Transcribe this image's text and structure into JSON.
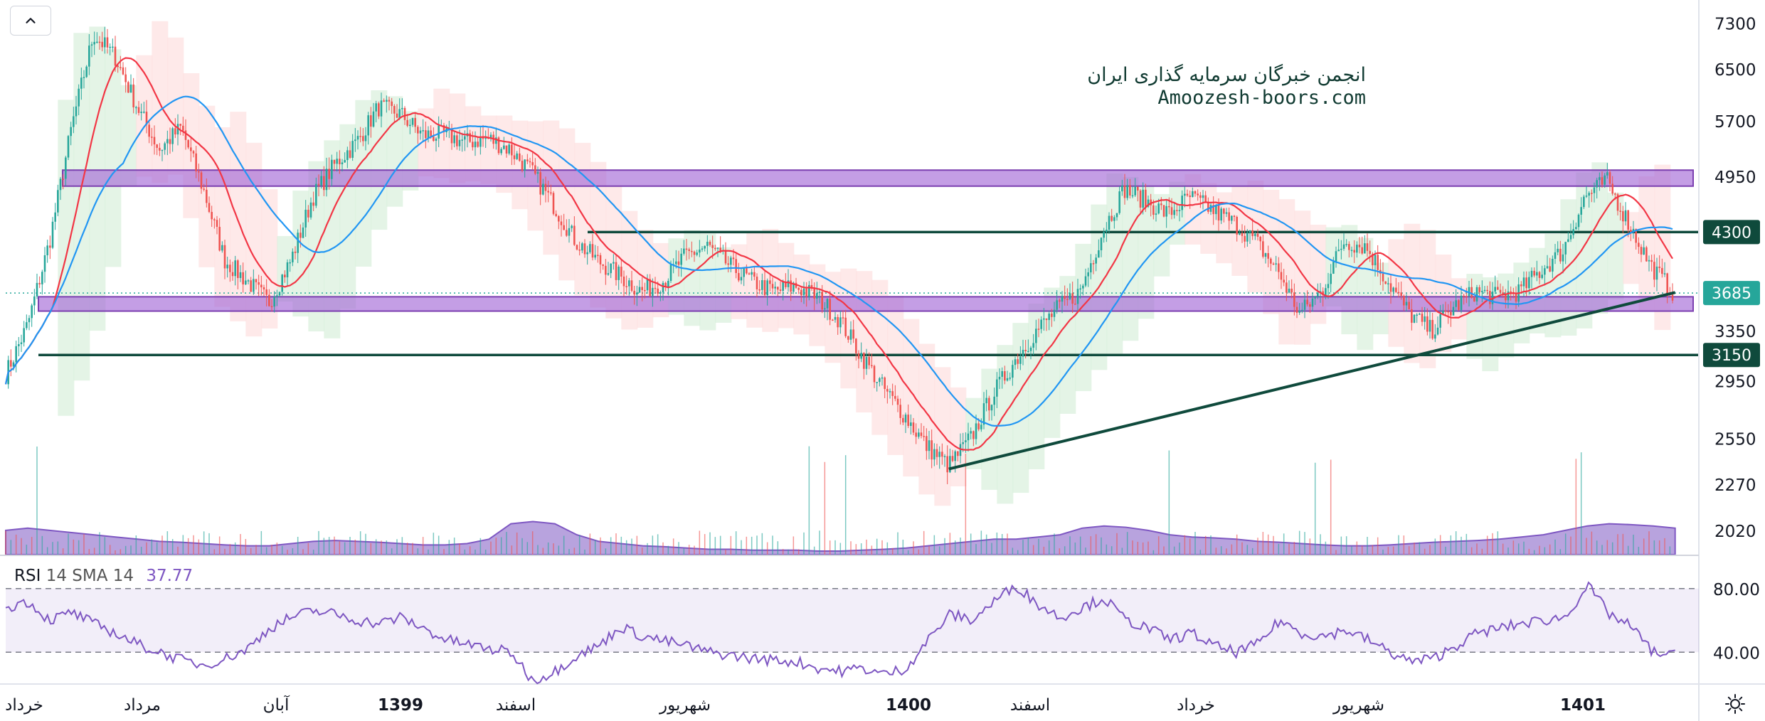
{
  "toolbar": {
    "collapse_icon": "chevron-up-icon"
  },
  "watermark": {
    "line1": "انجمن خبرگان سرمایه گذاری ایران",
    "line2": "Amoozesh-boors.com"
  },
  "rsi": {
    "label": "RSI",
    "params": "14 SMA 14",
    "value": "37.77",
    "levels": [
      80,
      40
    ],
    "level_labels": [
      "80.00",
      "40.00"
    ],
    "range": [
      20,
      100
    ]
  },
  "colors": {
    "zone_fill": "#a46ad7",
    "zone_border": "#7b3fb0",
    "level_line": "#0f4a3c",
    "trend_line": "#0f4a3c",
    "bull": "#26a69a",
    "bear": "#ef5350",
    "ma_fast": "#f23645",
    "ma_slow": "#2196f3",
    "volume": "#7e57c2",
    "rsi": "#7e57c2",
    "price_badge": "#26a69a",
    "cloud_bull": "#d8f0dc",
    "cloud_bear": "#fde0e0"
  },
  "footer": {
    "settings_icon": "sun-gear-icon"
  },
  "chart_data": {
    "type": "candlestick",
    "y_scale": "log",
    "ylim": [
      1900,
      7600
    ],
    "y_ticks": [
      "7300",
      "6500",
      "5700",
      "4950",
      "3350",
      "2950",
      "2550",
      "2270",
      "2020"
    ],
    "x_labels": [
      "خرداد",
      "مرداد",
      "آبان",
      "1399",
      "اسفند",
      "شهریور",
      "1400",
      "اسفند",
      "خرداد",
      "شهریور",
      "1401"
    ],
    "x_labels_bold": [
      "1399",
      "1400",
      "1401"
    ],
    "price_levels": [
      {
        "value": 4300,
        "label": "4300",
        "kind": "resistance"
      },
      {
        "value": 3150,
        "label": "3150",
        "kind": "support"
      }
    ],
    "current_price": {
      "value": 3685,
      "label": "3685"
    },
    "zones": [
      {
        "low": 4830,
        "high": 5030
      },
      {
        "low": 3520,
        "high": 3650
      }
    ],
    "trendline": {
      "from": {
        "bar": 0.557,
        "price": 2360
      },
      "to": {
        "bar": 0.986,
        "price": 3690
      }
    },
    "close_path": [
      3000,
      3400,
      4200,
      5600,
      7100,
      6700,
      5900,
      5300,
      5600,
      4800,
      4000,
      3800,
      3600,
      4000,
      4700,
      5100,
      5400,
      5900,
      5800,
      5500,
      5500,
      5400,
      5450,
      5300,
      5000,
      4600,
      4200,
      4000,
      3850,
      3700,
      3800,
      4050,
      4150,
      3950,
      3800,
      3700,
      3750,
      3650,
      3450,
      3150,
      2900,
      2700,
      2500,
      2380,
      2550,
      2850,
      3100,
      3350,
      3550,
      3700,
      4300,
      4800,
      4650,
      4500,
      4700,
      4550,
      4400,
      4200,
      3900,
      3500,
      3700,
      4200,
      4150,
      3800,
      3500,
      3350,
      3550,
      3700,
      3650,
      3700,
      3900,
      4100,
      4700,
      4900,
      4400,
      3950,
      3700
    ],
    "volume_profile": [
      0.55,
      0.6,
      0.55,
      0.5,
      0.45,
      0.4,
      0.35,
      0.3,
      0.28,
      0.25,
      0.22,
      0.2,
      0.2,
      0.25,
      0.3,
      0.32,
      0.3,
      0.28,
      0.25,
      0.22,
      0.22,
      0.25,
      0.35,
      0.7,
      0.75,
      0.7,
      0.45,
      0.3,
      0.25,
      0.2,
      0.18,
      0.15,
      0.12,
      0.12,
      0.1,
      0.1,
      0.1,
      0.08,
      0.08,
      0.1,
      0.12,
      0.15,
      0.2,
      0.25,
      0.3,
      0.35,
      0.35,
      0.4,
      0.45,
      0.6,
      0.65,
      0.62,
      0.55,
      0.45,
      0.4,
      0.38,
      0.35,
      0.3,
      0.28,
      0.25,
      0.22,
      0.2,
      0.2,
      0.22,
      0.25,
      0.28,
      0.3,
      0.32,
      0.35,
      0.4,
      0.45,
      0.55,
      0.65,
      0.7,
      0.68,
      0.65,
      0.6
    ],
    "rsi_path": [
      68,
      72,
      60,
      65,
      58,
      52,
      45,
      40,
      35,
      32,
      36,
      42,
      55,
      62,
      66,
      64,
      60,
      58,
      62,
      55,
      48,
      45,
      42,
      40,
      22,
      28,
      38,
      44,
      56,
      50,
      47,
      44,
      40,
      38,
      36,
      35,
      34,
      30,
      28,
      30,
      26,
      30,
      48,
      64,
      60,
      72,
      82,
      70,
      62,
      68,
      74,
      60,
      55,
      48,
      52,
      44,
      40,
      45,
      60,
      52,
      50,
      54,
      48,
      40,
      34,
      36,
      44,
      52,
      55,
      58,
      60,
      62,
      82,
      64,
      56,
      40,
      38
    ]
  }
}
